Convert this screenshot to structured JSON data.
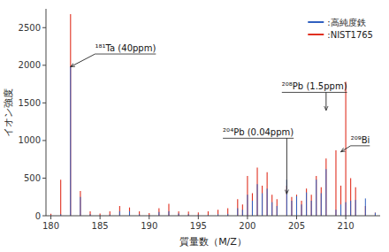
{
  "chart_data": {
    "type": "stem",
    "xlabel": "質量数（M/Z）",
    "ylabel": "イオン強度",
    "x": [
      180,
      181,
      182,
      183,
      184,
      185,
      186,
      187,
      188,
      189,
      190,
      191,
      192,
      193,
      194,
      195,
      196,
      197,
      198,
      199,
      199.5,
      200,
      200.5,
      201,
      201.5,
      202,
      202.5,
      203,
      204,
      204.5,
      205,
      205.5,
      206,
      206.5,
      207,
      207.5,
      208,
      209,
      209.5,
      210,
      210.5,
      211,
      212,
      213
    ],
    "series": [
      {
        "name": ":高純度鉄",
        "color": "#3060c0",
        "values": [
          5,
          20,
          1980,
          250,
          20,
          5,
          15,
          60,
          60,
          20,
          10,
          50,
          60,
          30,
          20,
          15,
          10,
          20,
          25,
          100,
          80,
          280,
          200,
          420,
          300,
          360,
          180,
          130,
          480,
          200,
          260,
          150,
          310,
          200,
          480,
          300,
          620,
          80,
          150,
          180,
          200,
          210,
          230,
          40
        ]
      },
      {
        "name": ":NIST1765",
        "color": "#e03020",
        "values": [
          25,
          480,
          2680,
          330,
          60,
          30,
          60,
          130,
          110,
          60,
          35,
          100,
          160,
          60,
          55,
          45,
          60,
          80,
          100,
          220,
          150,
          530,
          300,
          640,
          400,
          580,
          280,
          220,
          400,
          250,
          280,
          200,
          360,
          280,
          530,
          380,
          760,
          870,
          400,
          1780,
          500,
          380,
          130,
          40
        ]
      }
    ],
    "xlim": [
      179.5,
      213.5
    ],
    "ylim": [
      0,
      2750
    ],
    "xticks": [
      180,
      185,
      190,
      195,
      200,
      205,
      210
    ],
    "yticks": [
      0,
      500,
      1000,
      1500,
      2000,
      2500
    ],
    "grid": false,
    "legend": "upper right",
    "annotations": [
      {
        "text": "¹⁸¹Ta (40ppm)",
        "x": 182,
        "y": 1980,
        "text_x": 184.5,
        "text_y": 2150
      },
      {
        "text": "²⁰⁴Pb (0.04ppm)",
        "x": 204,
        "y": 290,
        "text_x": 197.5,
        "text_y": 1030
      },
      {
        "text": "²⁰⁸Pb (1.5ppm)",
        "x": 208,
        "y": 1400,
        "text_x": 203.5,
        "text_y": 1640
      },
      {
        "text": "²⁰⁹Bi",
        "x": 209.5,
        "y": 850,
        "text_x": 210.5,
        "text_y": 930
      }
    ]
  }
}
